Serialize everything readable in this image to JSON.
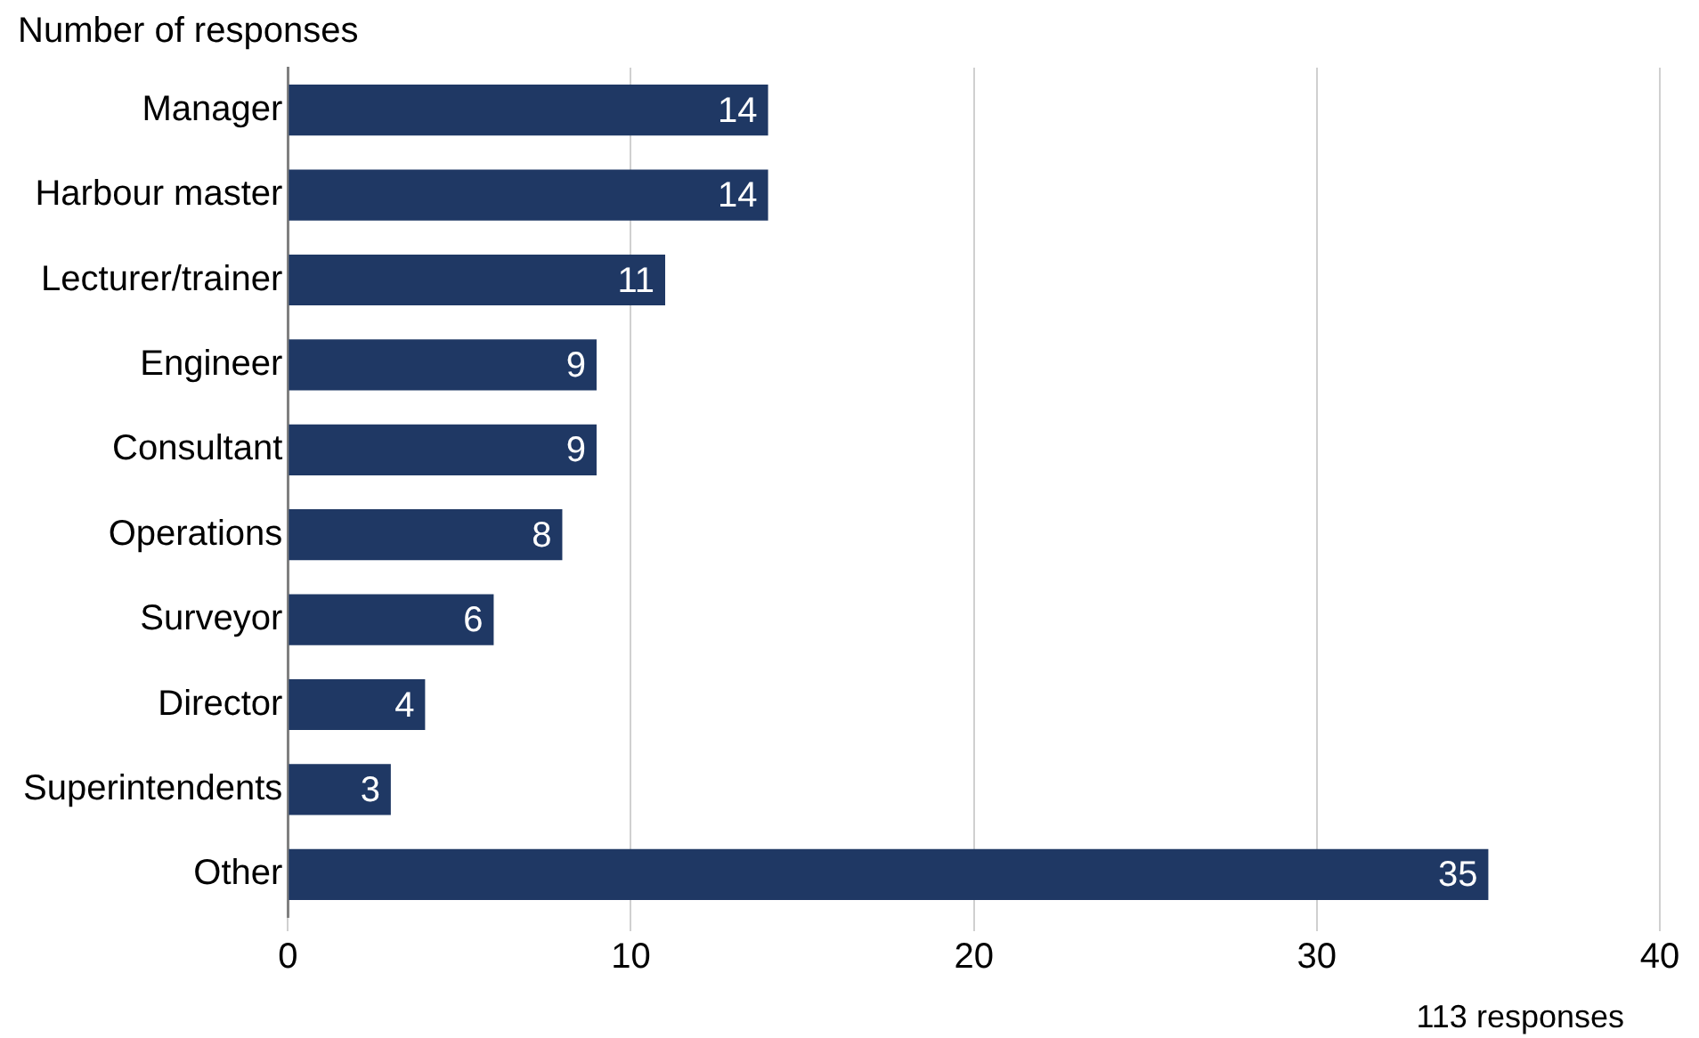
{
  "chart_data": {
    "type": "bar",
    "orientation": "horizontal",
    "title": "Number of responses",
    "categories": [
      "Manager",
      "Harbour master",
      "Lecturer/trainer",
      "Engineer",
      "Consultant",
      "Operations",
      "Surveyor",
      "Director",
      "Superintendents",
      "Other"
    ],
    "values": [
      14,
      14,
      11,
      9,
      9,
      8,
      6,
      4,
      3,
      35
    ],
    "color": "#1f3864",
    "xlim": [
      0,
      40
    ],
    "xticks": [
      0,
      10,
      20,
      30,
      40
    ],
    "grid": "x",
    "data_labels": true,
    "legend": false,
    "annotations": [
      "113 responses"
    ]
  }
}
